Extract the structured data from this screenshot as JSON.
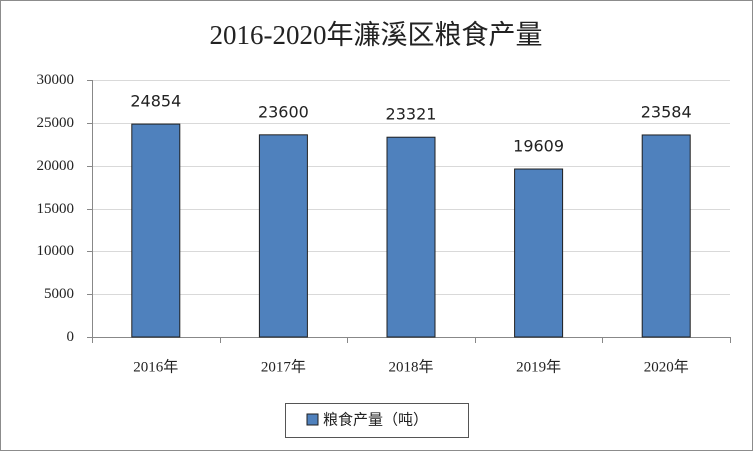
{
  "chart_data": {
    "type": "bar",
    "title": "2016-2020年濂溪区粮食产量",
    "categories": [
      "2016年",
      "2017年",
      "2018年",
      "2019年",
      "2020年"
    ],
    "series": [
      {
        "name": "粮食产量（吨）",
        "color": "#4f81bd",
        "values": [
          24854,
          23600,
          23321,
          19609,
          23584
        ]
      }
    ],
    "ylim": [
      0,
      30000
    ],
    "yticks": [
      0,
      5000,
      10000,
      15000,
      20000,
      25000,
      30000
    ],
    "grid": true,
    "legend": "bottom"
  }
}
